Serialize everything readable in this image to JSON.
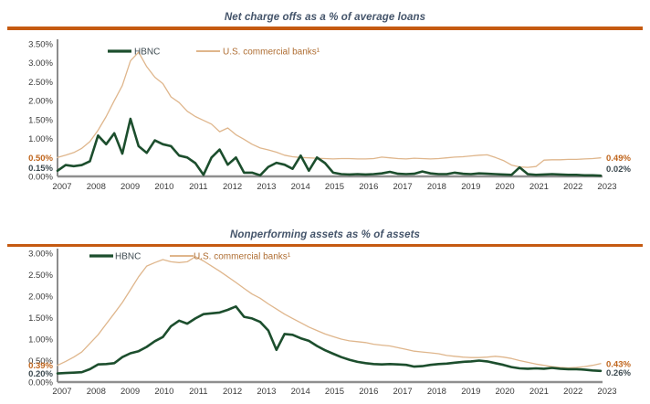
{
  "accent_colors": {
    "rule": "#C55A11",
    "title": "#44546A",
    "axis_text": "#3A3A3A",
    "x_axis_line": "#8F8F8F",
    "y_axis_line": "#404040",
    "hbnc_green": "#1C4E2D",
    "us_banks_tan": "#DFB68C",
    "orange_value_label": "#C0661E",
    "dark_value_label": "#3D4A50"
  },
  "chart_data": [
    {
      "type": "line",
      "title": "Net charge offs as a % of average loans",
      "xlabel": "",
      "ylabel": "",
      "x_frequency": "quarterly",
      "x_tick_labels": [
        "2007",
        "2008",
        "2009",
        "2010",
        "2011",
        "2012",
        "2013",
        "2014",
        "2015",
        "2016",
        "2017",
        "2018",
        "2019",
        "2020",
        "2021",
        "2022",
        "2023"
      ],
      "ylim": [
        0,
        3.5
      ],
      "grid": false,
      "legend_position": "top-left-inside",
      "y_ticks": [
        {
          "label": "3.50%",
          "value": 3.5
        },
        {
          "label": "3.00%",
          "value": 3.0
        },
        {
          "label": "2.50%",
          "value": 2.5
        },
        {
          "label": "2.00%",
          "value": 2.0
        },
        {
          "label": "1.50%",
          "value": 1.5
        },
        {
          "label": "1.00%",
          "value": 1.0
        },
        {
          "label": "0.00%",
          "value": 0.0
        }
      ],
      "series": [
        {
          "name": "HBNC",
          "data_name": "hbnc",
          "color": "#1C4E2D",
          "label_color": "#3D4A50",
          "legend_color": "#3D4A50",
          "line_width": 2.6,
          "start_label": "0.15%",
          "end_label": "0.02%",
          "values": [
            0.15,
            0.3,
            0.27,
            0.3,
            0.4,
            1.08,
            0.85,
            1.14,
            0.6,
            1.52,
            0.8,
            0.62,
            0.95,
            0.85,
            0.8,
            0.55,
            0.5,
            0.35,
            0.04,
            0.5,
            0.71,
            0.31,
            0.5,
            0.1,
            0.1,
            0.03,
            0.25,
            0.36,
            0.31,
            0.2,
            0.55,
            0.15,
            0.5,
            0.35,
            0.1,
            0.06,
            0.05,
            0.06,
            0.05,
            0.06,
            0.08,
            0.12,
            0.07,
            0.06,
            0.07,
            0.13,
            0.08,
            0.06,
            0.06,
            0.1,
            0.07,
            0.06,
            0.08,
            0.07,
            0.06,
            0.05,
            0.04,
            0.24,
            0.06,
            0.04,
            0.05,
            0.06,
            0.05,
            0.04,
            0.04,
            0.03,
            0.03,
            0.02
          ]
        },
        {
          "name": "U.S. commercial banks¹",
          "data_name": "us-commercial-banks",
          "color": "#DFB68C",
          "label_color": "#C0661E",
          "legend_color": "#AF6E33",
          "line_width": 1.3,
          "start_label": "0.50%",
          "end_label": "0.49%",
          "values": [
            0.5,
            0.56,
            0.63,
            0.74,
            0.92,
            1.22,
            1.58,
            2.0,
            2.4,
            3.05,
            3.28,
            2.9,
            2.62,
            2.45,
            2.1,
            1.95,
            1.72,
            1.58,
            1.48,
            1.38,
            1.18,
            1.28,
            1.1,
            0.98,
            0.85,
            0.75,
            0.7,
            0.64,
            0.56,
            0.52,
            0.5,
            0.49,
            0.48,
            0.47,
            0.46,
            0.47,
            0.47,
            0.46,
            0.46,
            0.47,
            0.51,
            0.49,
            0.47,
            0.46,
            0.48,
            0.47,
            0.46,
            0.47,
            0.49,
            0.51,
            0.52,
            0.54,
            0.56,
            0.57,
            0.5,
            0.42,
            0.3,
            0.25,
            0.24,
            0.26,
            0.43,
            0.44,
            0.44,
            0.45,
            0.45,
            0.46,
            0.47,
            0.49
          ]
        }
      ]
    },
    {
      "type": "line",
      "title": "Nonperforming assets as % of assets",
      "xlabel": "",
      "ylabel": "",
      "x_frequency": "quarterly",
      "x_tick_labels": [
        "2007",
        "2008",
        "2009",
        "2010",
        "2011",
        "2012",
        "2013",
        "2014",
        "2015",
        "2016",
        "2017",
        "2018",
        "2019",
        "2020",
        "2021",
        "2022",
        "2023"
      ],
      "ylim": [
        0,
        3.0
      ],
      "grid": false,
      "legend_position": "top-left-inside",
      "y_ticks": [
        {
          "label": "3.00%",
          "value": 3.0
        },
        {
          "label": "2.50%",
          "value": 2.5
        },
        {
          "label": "2.00%",
          "value": 2.0
        },
        {
          "label": "1.50%",
          "value": 1.5
        },
        {
          "label": "1.00%",
          "value": 1.0
        },
        {
          "label": "0.50%",
          "value": 0.5
        },
        {
          "label": "0.00%",
          "value": 0.0
        }
      ],
      "series": [
        {
          "name": "HBNC",
          "data_name": "hbnc",
          "color": "#1C4E2D",
          "label_color": "#3D4A50",
          "legend_color": "#3D4A50",
          "line_width": 2.6,
          "start_label": "0.20%",
          "end_label": "0.26%",
          "values": [
            0.2,
            0.21,
            0.22,
            0.23,
            0.3,
            0.41,
            0.42,
            0.44,
            0.58,
            0.67,
            0.72,
            0.82,
            0.95,
            1.05,
            1.3,
            1.43,
            1.36,
            1.48,
            1.58,
            1.6,
            1.62,
            1.68,
            1.76,
            1.52,
            1.48,
            1.4,
            1.2,
            0.75,
            1.12,
            1.1,
            1.02,
            0.96,
            0.84,
            0.74,
            0.66,
            0.58,
            0.52,
            0.47,
            0.44,
            0.42,
            0.41,
            0.42,
            0.41,
            0.4,
            0.36,
            0.37,
            0.4,
            0.42,
            0.43,
            0.45,
            0.47,
            0.48,
            0.5,
            0.48,
            0.44,
            0.4,
            0.35,
            0.32,
            0.31,
            0.32,
            0.31,
            0.33,
            0.31,
            0.3,
            0.3,
            0.29,
            0.27,
            0.26
          ]
        },
        {
          "name": "U.S. commercial banks¹",
          "data_name": "us-commercial-banks",
          "color": "#DFB68C",
          "label_color": "#C0661E",
          "legend_color": "#AF6E33",
          "line_width": 1.3,
          "start_label": "0.39%",
          "end_label": "0.43%",
          "values": [
            0.39,
            0.48,
            0.58,
            0.7,
            0.9,
            1.1,
            1.35,
            1.6,
            1.85,
            2.15,
            2.45,
            2.7,
            2.78,
            2.85,
            2.8,
            2.78,
            2.8,
            2.92,
            2.82,
            2.7,
            2.58,
            2.45,
            2.32,
            2.18,
            2.05,
            1.95,
            1.82,
            1.7,
            1.58,
            1.48,
            1.38,
            1.28,
            1.2,
            1.12,
            1.06,
            1.0,
            0.96,
            0.94,
            0.92,
            0.88,
            0.86,
            0.84,
            0.8,
            0.76,
            0.72,
            0.7,
            0.68,
            0.66,
            0.62,
            0.6,
            0.58,
            0.57,
            0.57,
            0.58,
            0.6,
            0.58,
            0.55,
            0.5,
            0.46,
            0.42,
            0.39,
            0.36,
            0.34,
            0.33,
            0.34,
            0.36,
            0.39,
            0.43
          ]
        }
      ]
    }
  ]
}
